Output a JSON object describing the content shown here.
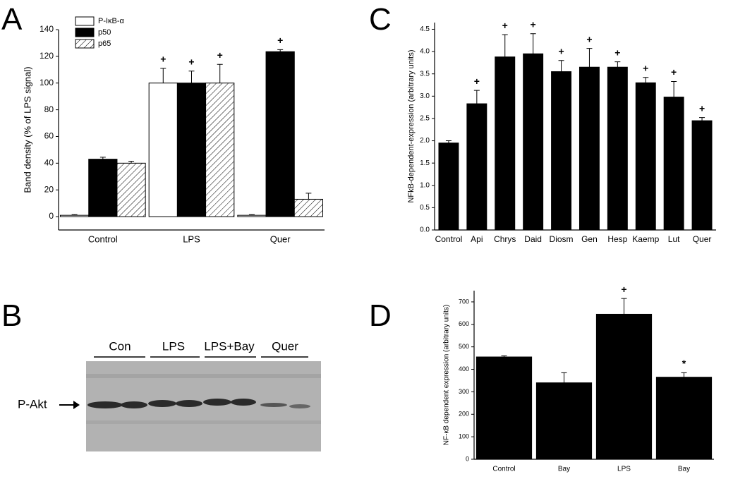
{
  "panel_labels": [
    "A",
    "B",
    "C",
    "D"
  ],
  "blot": {
    "lanes": [
      "Con",
      "LPS",
      "LPS+Bay",
      "Quer"
    ],
    "band_label": "P-Akt"
  },
  "chart_data": [
    {
      "type": "bar",
      "ylabel": "Band density (% of LPS signal)",
      "categories": [
        "Control",
        "LPS",
        "Quer"
      ],
      "series": [
        {
          "name": "P-IκB-α",
          "color": "#ffffff",
          "values": [
            1,
            100,
            1
          ],
          "errors": [
            0.5,
            11,
            0.5
          ],
          "markers": [
            null,
            "+",
            null
          ]
        },
        {
          "name": "p50",
          "color": "#000000",
          "values": [
            43,
            100,
            123.5
          ],
          "errors": [
            1.5,
            9,
            1.5
          ],
          "markers": [
            null,
            "+",
            "+"
          ]
        },
        {
          "name": "p65",
          "color": "#ffffff",
          "hatch": true,
          "values": [
            40,
            100,
            13
          ],
          "errors": [
            1.5,
            14,
            4.5
          ],
          "markers": [
            null,
            "+",
            null
          ]
        }
      ],
      "ylim": [
        -10,
        140
      ],
      "yticks": [
        0,
        20,
        40,
        60,
        80,
        100,
        120,
        140
      ],
      "legend": "upper left"
    },
    {
      "type": "bar",
      "ylabel": "NFkB-dependent-expression (arbitrary units)",
      "categories": [
        "Control",
        "Api",
        "Chrys",
        "Daid",
        "Diosm",
        "Gen",
        "Hesp",
        "Kaemp",
        "Lut",
        "Quer"
      ],
      "values": [
        1.95,
        2.83,
        3.88,
        3.95,
        3.55,
        3.65,
        3.65,
        3.3,
        2.98,
        2.45
      ],
      "errors": [
        0.05,
        0.3,
        0.5,
        0.45,
        0.25,
        0.42,
        0.12,
        0.12,
        0.35,
        0.07
      ],
      "markers": [
        null,
        "+",
        "+",
        "+",
        "+",
        "+",
        "+",
        "+",
        "+",
        "+"
      ],
      "color": "#000000",
      "ylim": [
        0,
        4.65
      ],
      "yticks": [
        {
          "value": 0,
          "label": "0.0"
        },
        0.5,
        {
          "value": 1,
          "label": "1.0"
        },
        1.5,
        {
          "value": 2,
          "label": "2.0"
        },
        2.5,
        {
          "value": 3,
          "label": "3.0"
        },
        3.5,
        {
          "value": 4,
          "label": "4.0"
        },
        4.5
      ]
    },
    {
      "type": "bar",
      "ylabel": "NF-κB dependent expression (arbitrary units)",
      "categories": [
        "Control",
        "Bay",
        "LPS",
        "Bay"
      ],
      "values": [
        455,
        340,
        645,
        365
      ],
      "errors": [
        5,
        45,
        70,
        20
      ],
      "markers": [
        null,
        null,
        "+",
        "*"
      ],
      "color": "#000000",
      "ylim": [
        0,
        750
      ],
      "yticks": [
        0,
        100,
        200,
        300,
        400,
        500,
        600,
        700
      ]
    }
  ]
}
